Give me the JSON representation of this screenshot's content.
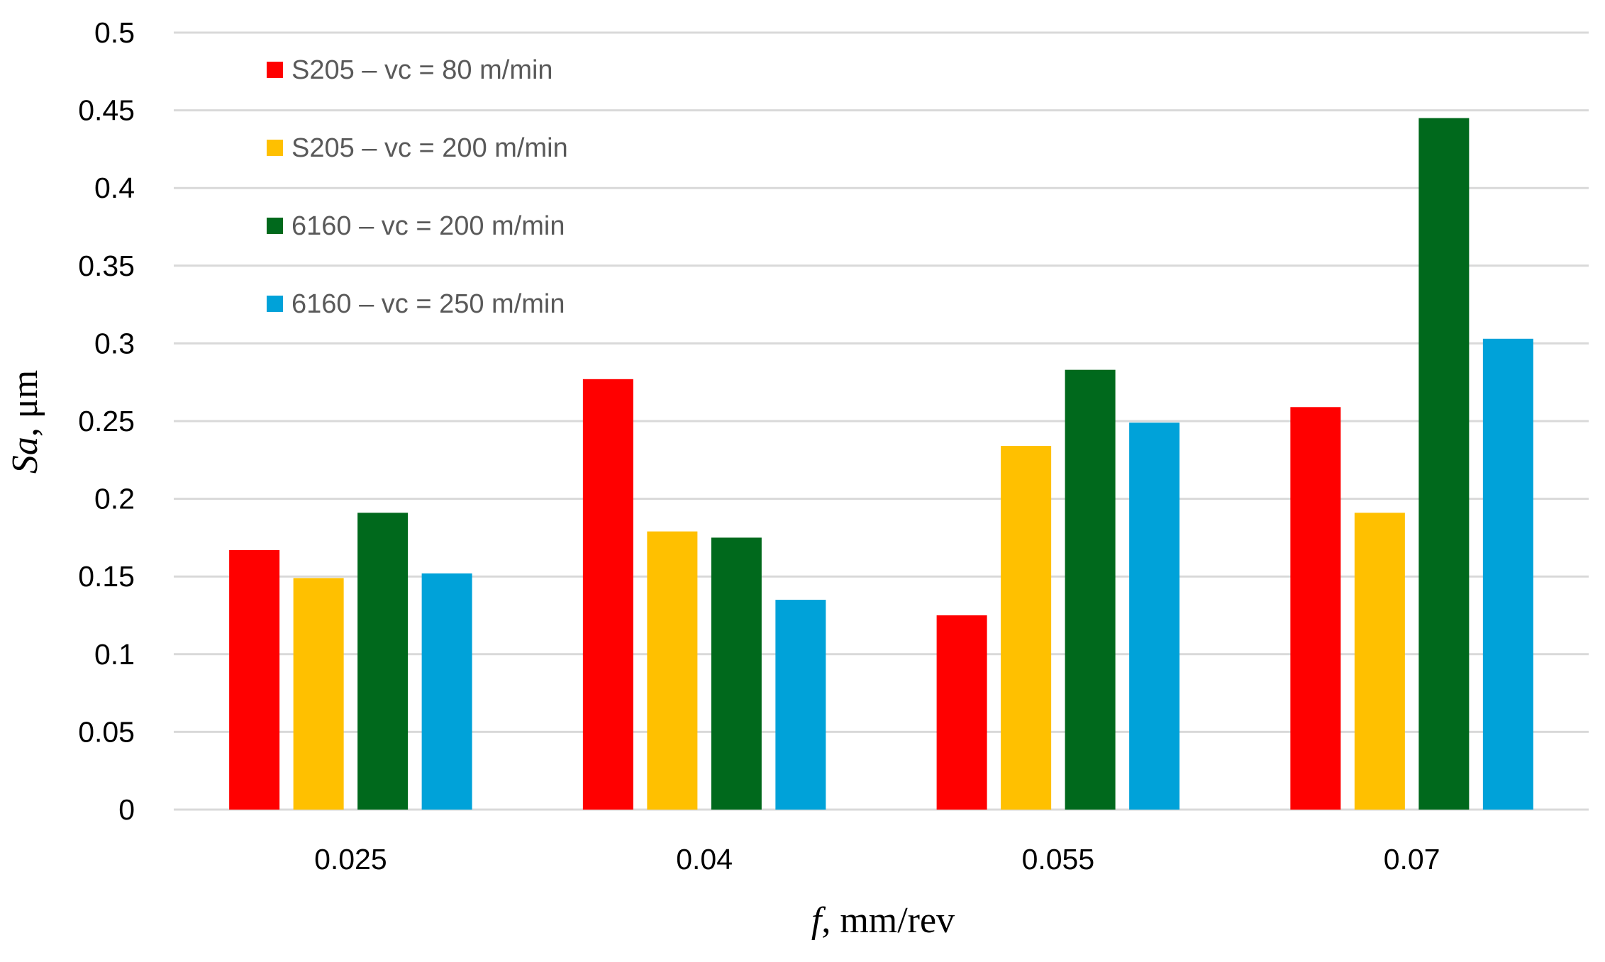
{
  "chart_data": {
    "type": "bar",
    "title": "",
    "xlabel_var": "f",
    "xlabel_unit": ", mm/rev",
    "ylabel_var": "Sa",
    "ylabel_unit": ", μm",
    "categories": [
      "0.025",
      "0.04",
      "0.055",
      "0.07"
    ],
    "ylim": [
      0,
      0.5
    ],
    "ytick_values": [
      0,
      0.05,
      0.1,
      0.15,
      0.2,
      0.25,
      0.3,
      0.35,
      0.4,
      0.45,
      0.5
    ],
    "ytick_labels": [
      "0",
      "0.05",
      "0.1",
      "0.15",
      "0.2",
      "0.25",
      "0.3",
      "0.35",
      "0.4",
      "0.45",
      "0.5"
    ],
    "grid": true,
    "legend_position": "top-left",
    "series": [
      {
        "name": "S205 – vc = 80 m/min",
        "color": "#ff0000",
        "values": [
          0.167,
          0.277,
          0.125,
          0.259
        ]
      },
      {
        "name": "S205 – vc = 200 m/min",
        "color": "#ffc000",
        "values": [
          0.149,
          0.179,
          0.234,
          0.191
        ]
      },
      {
        "name": "6160 – vc = 200 m/min",
        "color": "#00691c",
        "values": [
          0.191,
          0.175,
          0.283,
          0.445
        ]
      },
      {
        "name": "6160 – vc = 250 m/min",
        "color": "#00a2d9",
        "values": [
          0.152,
          0.135,
          0.249,
          0.303
        ]
      }
    ]
  }
}
